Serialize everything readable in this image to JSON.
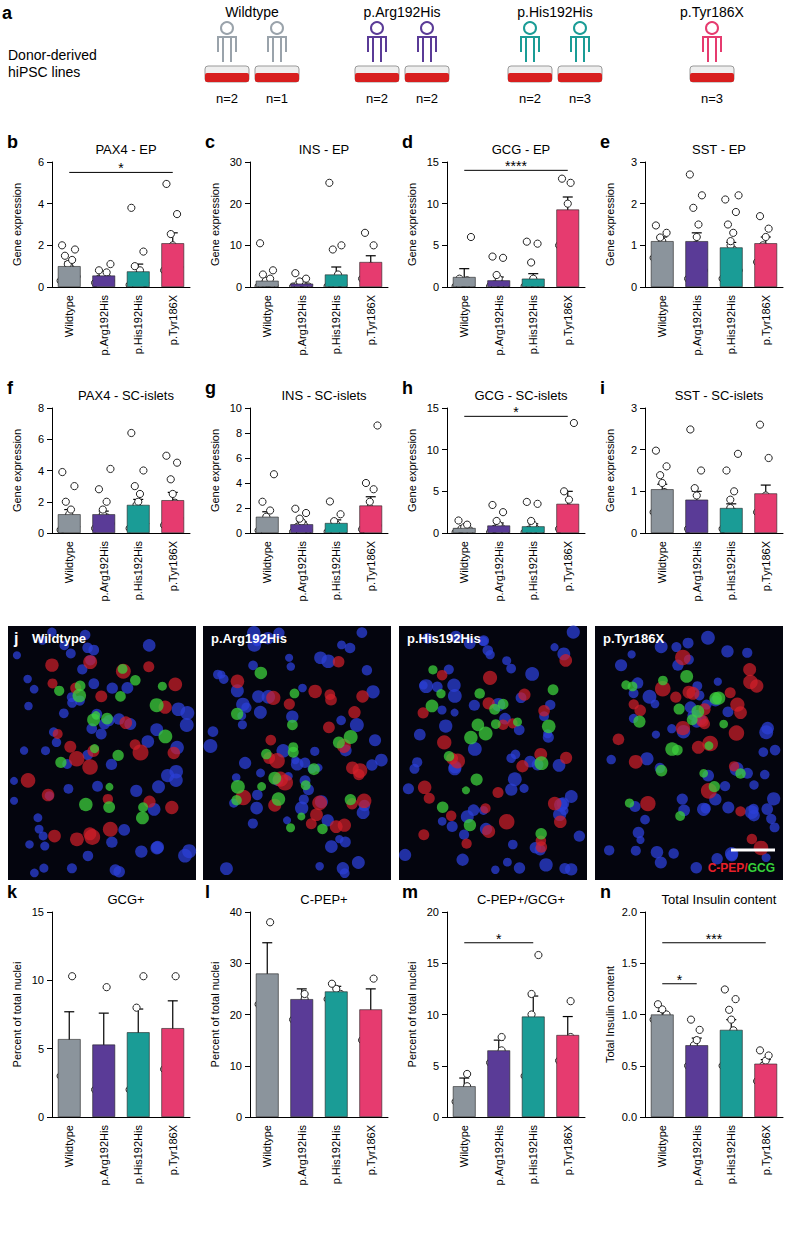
{
  "donor_panel": {
    "label": "a",
    "title_lines": [
      "Donor-derived",
      "hiPSC lines"
    ],
    "groups": [
      {
        "name": "Wildtype",
        "color": "#9aa3ab",
        "lines": [
          "n=2",
          "n=1"
        ]
      },
      {
        "name": "p.Arg192His",
        "color": "#5a3b97",
        "lines": [
          "n=2",
          "n=2"
        ]
      },
      {
        "name": "p.His192His",
        "color": "#1a9c96",
        "lines": [
          "n=2",
          "n=3"
        ]
      },
      {
        "name": "p.Tyr186X",
        "color": "#e63b6f",
        "lines": [
          "n=3"
        ]
      }
    ]
  },
  "image_panel": {
    "label": "j",
    "captions": [
      "Wildtype",
      "p.Arg192His",
      "p.His192His",
      "p.Tyr186X"
    ],
    "channels": [
      {
        "text": "C-PEP/",
        "color": "#e8202a"
      },
      {
        "text": "GCG",
        "color": "#36d13a"
      }
    ]
  },
  "chart_data": [
    {
      "type": "bar",
      "label": "b",
      "title": "PAX4 - EP",
      "ylabel": "Gene expression",
      "grid": false,
      "categories": [
        "Wildtype",
        "p.Arg192His",
        "p.His192His",
        "p.Tyr186X"
      ],
      "colors": [
        "#8b949c",
        "#5a3b97",
        "#1a9c96",
        "#e63b6f"
      ],
      "values": [
        1.0,
        0.55,
        0.75,
        2.1
      ],
      "errors": [
        0.2,
        0.1,
        0.35,
        0.5
      ],
      "points": [
        [
          0.3,
          0.5,
          0.6,
          0.7,
          0.8,
          0.9,
          1.0,
          1.1,
          1.3,
          1.5,
          1.8,
          2.0
        ],
        [
          0.2,
          0.3,
          0.4,
          0.5,
          0.5,
          0.6,
          0.7,
          0.8,
          1.1
        ],
        [
          0.1,
          0.2,
          0.3,
          0.4,
          0.5,
          0.6,
          0.8,
          1.0,
          1.7,
          3.8
        ],
        [
          0.8,
          1.0,
          1.2,
          1.6,
          2.0,
          2.6,
          3.5,
          5.0
        ]
      ],
      "ylim": [
        0,
        6
      ],
      "yticks": [
        0,
        2,
        4,
        6
      ],
      "annotations": [
        {
          "from": "Wildtype",
          "to": "p.Tyr186X",
          "y": 5.5,
          "text": "*"
        }
      ]
    },
    {
      "type": "bar",
      "label": "c",
      "title": "INS - EP",
      "ylabel": "Gene expression",
      "grid": false,
      "categories": [
        "Wildtype",
        "p.Arg192His",
        "p.His192His",
        "p.Tyr186X"
      ],
      "colors": [
        "#8b949c",
        "#5a3b97",
        "#1a9c96",
        "#e63b6f"
      ],
      "values": [
        1.5,
        0.8,
        3.0,
        6.0
      ],
      "errors": [
        0.8,
        0.3,
        1.8,
        1.5
      ],
      "points": [
        [
          0.2,
          0.3,
          0.5,
          0.6,
          0.8,
          1.0,
          1.2,
          1.5,
          2.0,
          3.0,
          4.0,
          10.5
        ],
        [
          0.1,
          0.3,
          0.5,
          0.6,
          1.0,
          1.5,
          2.0,
          3.5
        ],
        [
          0.2,
          0.5,
          0.8,
          1.0,
          1.5,
          2.0,
          3.0,
          9.0,
          10.0,
          25.0
        ],
        [
          2.0,
          3.0,
          4.0,
          5.0,
          10.0,
          13.0
        ]
      ],
      "ylim": [
        0,
        30
      ],
      "yticks": [
        0,
        10,
        20,
        30
      ],
      "annotations": []
    },
    {
      "type": "bar",
      "label": "d",
      "title": "GCG - EP",
      "ylabel": "Gene expression",
      "grid": false,
      "categories": [
        "Wildtype",
        "p.Arg192His",
        "p.His192His",
        "p.Tyr186X"
      ],
      "colors": [
        "#8b949c",
        "#5a3b97",
        "#1a9c96",
        "#e63b6f"
      ],
      "values": [
        1.2,
        0.8,
        1.0,
        9.3
      ],
      "errors": [
        1.0,
        0.4,
        0.6,
        1.5
      ],
      "points": [
        [
          0.1,
          0.2,
          0.3,
          0.4,
          0.5,
          0.6,
          0.8,
          1.0,
          6.0
        ],
        [
          0.1,
          0.2,
          0.3,
          0.5,
          1.0,
          1.5,
          3.5,
          3.8
        ],
        [
          0.1,
          0.2,
          0.3,
          0.4,
          1.0,
          3.0,
          5.2,
          5.5
        ],
        [
          5.0,
          6.0,
          7.0,
          10.0,
          12.5,
          13.0
        ]
      ],
      "ylim": [
        0,
        15
      ],
      "yticks": [
        0,
        5,
        10,
        15
      ],
      "annotations": [
        {
          "from": "Wildtype",
          "to": "p.Tyr186X",
          "y": 14,
          "text": "****"
        }
      ]
    },
    {
      "type": "bar",
      "label": "e",
      "title": "SST - EP",
      "ylabel": "Gene expression",
      "grid": false,
      "categories": [
        "Wildtype",
        "p.Arg192His",
        "p.His192His",
        "p.Tyr186X"
      ],
      "colors": [
        "#8b949c",
        "#5a3b97",
        "#1a9c96",
        "#e63b6f"
      ],
      "values": [
        1.1,
        1.1,
        0.95,
        1.05
      ],
      "errors": [
        0.1,
        0.2,
        0.12,
        0.15
      ],
      "points": [
        [
          0.7,
          0.8,
          0.9,
          1.0,
          1.1,
          1.2,
          1.3,
          1.5
        ],
        [
          0.2,
          0.4,
          0.6,
          0.8,
          1.0,
          1.2,
          1.5,
          1.9,
          2.2,
          2.7
        ],
        [
          0.2,
          0.4,
          0.6,
          0.7,
          0.8,
          0.9,
          1.0,
          1.1,
          1.3,
          1.5,
          1.8,
          2.1,
          2.2
        ],
        [
          0.6,
          0.8,
          1.0,
          1.2,
          1.4,
          1.7
        ]
      ],
      "ylim": [
        0,
        3
      ],
      "yticks": [
        0,
        1,
        2,
        3
      ],
      "annotations": []
    },
    {
      "type": "bar",
      "label": "f",
      "title": "PAX4 - SC-islets",
      "ylabel": "Gene expression",
      "grid": false,
      "categories": [
        "Wildtype",
        "p.Arg192His",
        "p.His192His",
        "p.Tyr186X"
      ],
      "colors": [
        "#8b949c",
        "#5a3b97",
        "#1a9c96",
        "#e63b6f"
      ],
      "values": [
        1.2,
        1.2,
        1.8,
        2.1
      ],
      "errors": [
        0.3,
        0.2,
        0.35,
        0.5
      ],
      "points": [
        [
          0.2,
          0.4,
          0.6,
          0.8,
          1.0,
          1.2,
          1.5,
          2.0,
          3.0,
          3.9
        ],
        [
          0.3,
          0.6,
          0.8,
          1.0,
          1.2,
          1.5,
          2.0,
          2.8,
          4.1
        ],
        [
          0.3,
          0.6,
          1.0,
          1.5,
          1.8,
          2.0,
          2.5,
          3.0,
          4.0,
          6.4
        ],
        [
          0.5,
          1.0,
          1.5,
          2.0,
          2.5,
          3.5,
          4.5,
          5.0
        ]
      ],
      "ylim": [
        0,
        8
      ],
      "yticks": [
        0,
        2,
        4,
        6,
        8
      ],
      "annotations": []
    },
    {
      "type": "bar",
      "label": "g",
      "title": "INS - SC-islets",
      "ylabel": "Gene expression",
      "grid": false,
      "categories": [
        "Wildtype",
        "p.Arg192His",
        "p.His192His",
        "p.Tyr186X"
      ],
      "colors": [
        "#8b949c",
        "#5a3b97",
        "#1a9c96",
        "#e63b6f"
      ],
      "values": [
        1.3,
        0.7,
        0.8,
        2.2
      ],
      "errors": [
        0.4,
        0.2,
        0.25,
        0.7
      ],
      "points": [
        [
          0.2,
          0.4,
          0.6,
          0.8,
          1.0,
          1.3,
          1.8,
          2.5,
          4.7
        ],
        [
          0.1,
          0.3,
          0.5,
          0.7,
          0.9,
          1.2,
          1.6,
          2.0
        ],
        [
          0.1,
          0.2,
          0.4,
          0.5,
          0.7,
          1.0,
          1.5,
          2.6
        ],
        [
          0.3,
          0.6,
          1.0,
          1.5,
          2.0,
          2.5,
          3.5,
          4.0,
          8.6
        ]
      ],
      "ylim": [
        0,
        10
      ],
      "yticks": [
        0,
        2,
        4,
        6,
        8,
        10
      ],
      "annotations": []
    },
    {
      "type": "bar",
      "label": "h",
      "title": "GCG - SC-islets",
      "ylabel": "Gene expression",
      "grid": false,
      "categories": [
        "Wildtype",
        "p.Arg192His",
        "p.His192His",
        "p.Tyr186X"
      ],
      "colors": [
        "#8b949c",
        "#5a3b97",
        "#1a9c96",
        "#e63b6f"
      ],
      "values": [
        0.6,
        0.9,
        0.8,
        3.5
      ],
      "errors": [
        0.2,
        0.3,
        0.3,
        1.5
      ],
      "points": [
        [
          0.1,
          0.3,
          0.5,
          0.7,
          1.0,
          1.5
        ],
        [
          0.1,
          0.3,
          0.5,
          0.8,
          1.0,
          1.5,
          2.5,
          3.5
        ],
        [
          0.1,
          0.2,
          0.4,
          0.6,
          1.0,
          1.5,
          3.5,
          3.8
        ],
        [
          0.5,
          1.0,
          2.0,
          3.0,
          4.0,
          5.0,
          13.2
        ]
      ],
      "ylim": [
        0,
        15
      ],
      "yticks": [
        0,
        5,
        10,
        15
      ],
      "annotations": [
        {
          "from": "Wildtype",
          "to": "p.Tyr186X",
          "y": 14,
          "text": "*"
        }
      ]
    },
    {
      "type": "bar",
      "label": "i",
      "title": "SST - SC-islets",
      "ylabel": "Gene expression",
      "grid": false,
      "categories": [
        "Wildtype",
        "p.Arg192His",
        "p.His192His",
        "p.Tyr186X"
      ],
      "colors": [
        "#8b949c",
        "#5a3b97",
        "#1a9c96",
        "#e63b6f"
      ],
      "values": [
        1.05,
        0.8,
        0.6,
        0.95
      ],
      "errors": [
        0.12,
        0.2,
        0.1,
        0.2
      ],
      "points": [
        [
          0.5,
          0.7,
          0.8,
          1.0,
          1.2,
          1.4,
          1.6,
          2.0
        ],
        [
          0.1,
          0.3,
          0.5,
          0.7,
          0.9,
          1.1,
          1.5,
          2.5
        ],
        [
          0.1,
          0.2,
          0.4,
          0.5,
          0.6,
          0.8,
          1.0,
          1.5,
          1.9
        ],
        [
          0.5,
          0.6,
          0.7,
          0.9,
          1.8,
          2.6
        ]
      ],
      "ylim": [
        0,
        3
      ],
      "yticks": [
        0,
        1,
        2,
        3
      ],
      "annotations": []
    },
    {
      "type": "bar",
      "label": "k",
      "title": "GCG+",
      "ylabel": "Percent of total nuclei",
      "grid": false,
      "categories": [
        "Wildtype",
        "p.Arg192His",
        "p.His192His",
        "p.Tyr186X"
      ],
      "colors": [
        "#8b949c",
        "#5a3b97",
        "#1a9c96",
        "#e63b6f"
      ],
      "values": [
        5.7,
        5.3,
        6.2,
        6.5
      ],
      "errors": [
        2.0,
        2.3,
        1.7,
        2.0
      ],
      "points": [
        [
          3.0,
          4.5,
          10.3
        ],
        [
          2.0,
          4.0,
          9.5
        ],
        [
          2.0,
          4.5,
          5.5,
          8.0,
          10.3
        ],
        [
          3.5,
          5.5,
          10.3
        ]
      ],
      "ylim": [
        0,
        15
      ],
      "yticks": [
        0,
        5,
        10,
        15
      ],
      "annotations": []
    },
    {
      "type": "bar",
      "label": "l",
      "title": "C-PEP+",
      "ylabel": "Percent of total nuclei",
      "grid": false,
      "categories": [
        "Wildtype",
        "p.Arg192His",
        "p.His192His",
        "p.Tyr186X"
      ],
      "colors": [
        "#8b949c",
        "#5a3b97",
        "#1a9c96",
        "#e63b6f"
      ],
      "values": [
        28,
        23,
        24.5,
        21
      ],
      "errors": [
        6,
        2,
        1,
        4
      ],
      "points": [
        [
          22,
          24,
          38
        ],
        [
          19,
          23,
          24
        ],
        [
          23,
          24,
          25,
          26
        ],
        [
          15,
          20,
          27
        ]
      ],
      "ylim": [
        0,
        40
      ],
      "yticks": [
        0,
        10,
        20,
        30,
        40
      ],
      "annotations": []
    },
    {
      "type": "bar",
      "label": "m",
      "title": "C-PEP+/GCG+",
      "ylabel": "Percent of total nuclei",
      "grid": false,
      "categories": [
        "Wildtype",
        "p.Arg192His",
        "p.His192His",
        "p.Tyr186X"
      ],
      "colors": [
        "#8b949c",
        "#5a3b97",
        "#1a9c96",
        "#e63b6f"
      ],
      "values": [
        3.0,
        6.5,
        9.8,
        8.0
      ],
      "errors": [
        0.8,
        1.0,
        2.0,
        1.8
      ],
      "points": [
        [
          1.5,
          3.0,
          4.2
        ],
        [
          5.3,
          6.5,
          7.8
        ],
        [
          4.0,
          7.0,
          10.0,
          12.0,
          15.8
        ],
        [
          5.5,
          7.8,
          11.3
        ]
      ],
      "ylim": [
        0,
        20
      ],
      "yticks": [
        0,
        5,
        10,
        15,
        20
      ],
      "annotations": [
        {
          "from": "Wildtype",
          "to": "p.His192His",
          "y": 17,
          "text": "*"
        }
      ]
    },
    {
      "type": "bar",
      "label": "n",
      "title": "Total Insulin content",
      "ylabel": "Total Insulin content",
      "grid": false,
      "categories": [
        "Wildtype",
        "p.Arg192His",
        "p.His192His",
        "p.Tyr186X"
      ],
      "colors": [
        "#8b949c",
        "#5a3b97",
        "#1a9c96",
        "#e63b6f"
      ],
      "values": [
        1.0,
        0.7,
        0.85,
        0.52
      ],
      "errors": [
        0.03,
        0.07,
        0.1,
        0.04
      ],
      "points": [
        [
          0.95,
          1.0,
          1.05,
          1.1
        ],
        [
          0.5,
          0.6,
          0.7,
          0.75,
          0.85,
          0.95
        ],
        [
          0.5,
          0.65,
          0.75,
          0.85,
          0.95,
          1.05,
          1.15,
          1.25
        ],
        [
          0.35,
          0.45,
          0.5,
          0.55,
          0.6,
          0.65
        ]
      ],
      "ylim": [
        0,
        2
      ],
      "yticks": [
        {
          "value": 0,
          "label": "0.0"
        },
        0.5,
        {
          "value": 1,
          "label": "1.0"
        },
        1.5,
        {
          "value": 2,
          "label": "2.0"
        }
      ],
      "annotations": [
        {
          "from": "Wildtype",
          "to": "p.Arg192His",
          "y": 1.3,
          "text": "*"
        },
        {
          "from": "Wildtype",
          "to": "p.Tyr186X",
          "y": 1.7,
          "text": "***"
        }
      ]
    }
  ]
}
